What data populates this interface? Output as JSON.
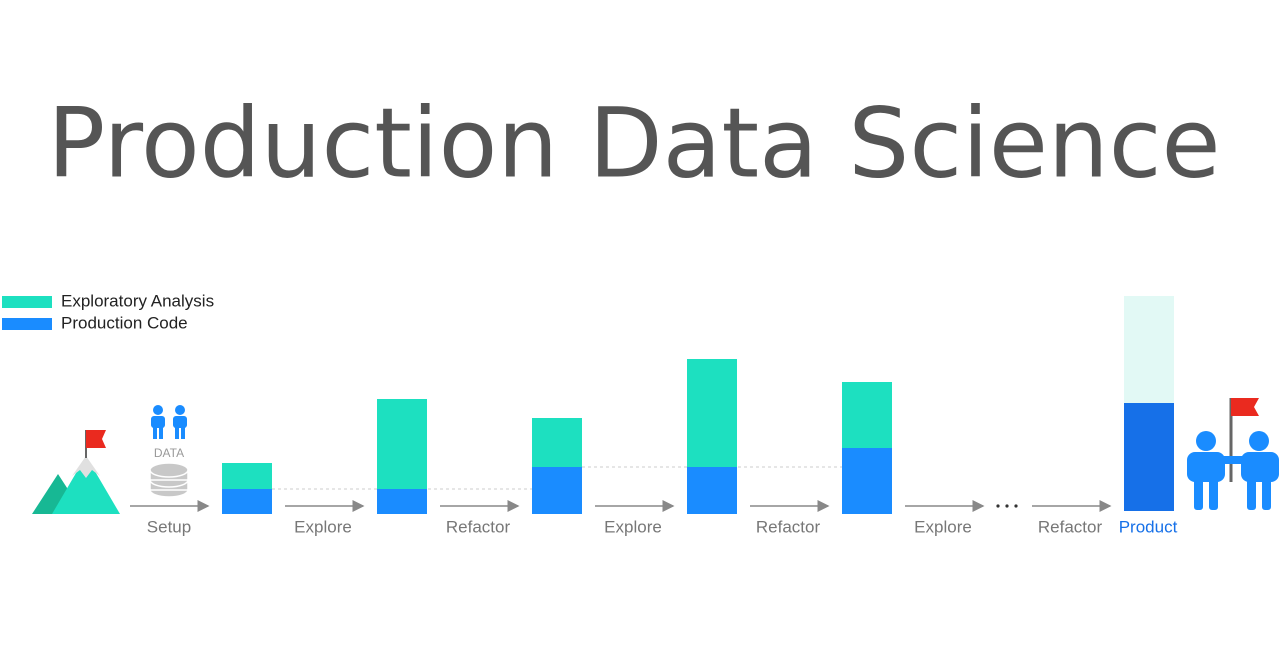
{
  "title": "Production Data Science",
  "legend": [
    "Exploratory Analysis",
    "Production Code"
  ],
  "data_icon_label": "DATA",
  "stages": [
    "Setup",
    "Explore",
    "Refactor",
    "Explore",
    "Refactor",
    "Explore",
    "Refactor",
    "Product"
  ]
}
